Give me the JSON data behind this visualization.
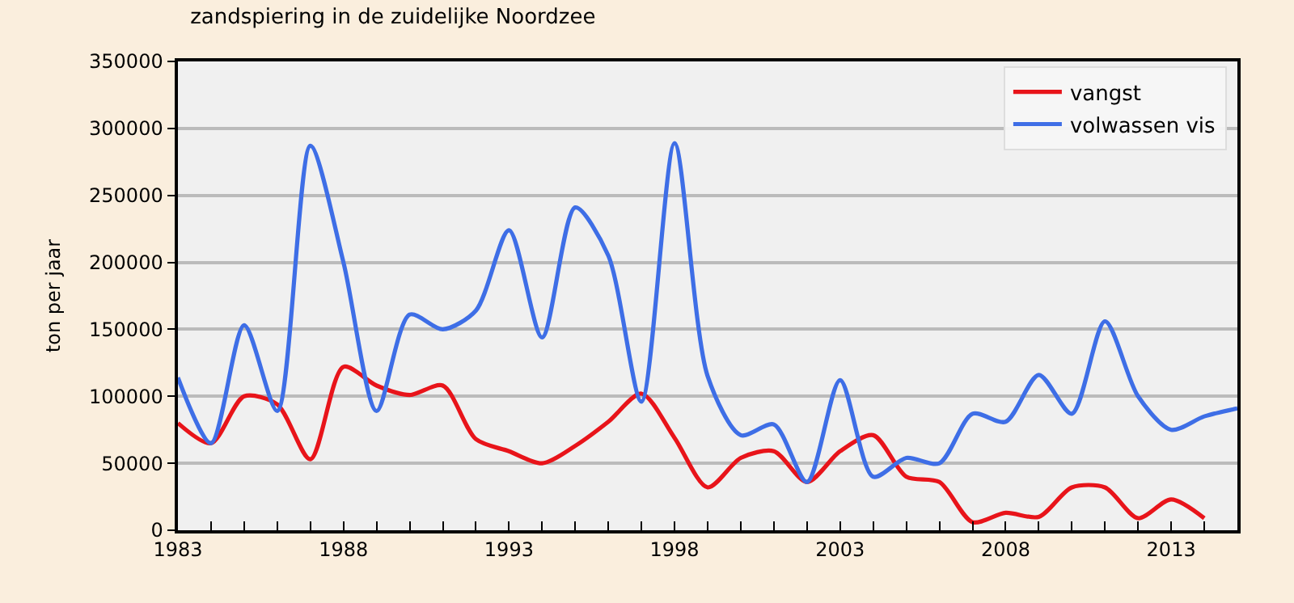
{
  "chart_data": {
    "type": "line",
    "title": "zandspiering in de zuidelijke Noordzee",
    "ylabel": "ton per jaar",
    "x": [
      1983,
      1984,
      1985,
      1986,
      1987,
      1988,
      1989,
      1990,
      1991,
      1992,
      1993,
      1994,
      1995,
      1996,
      1997,
      1998,
      1999,
      2000,
      2001,
      2002,
      2003,
      2004,
      2005,
      2006,
      2007,
      2008,
      2009,
      2010,
      2011,
      2012,
      2013,
      2014,
      2015
    ],
    "series": [
      {
        "name": "vangst",
        "color": "#e8141a",
        "x": [
          1983,
          1984,
          1985,
          1986,
          1987,
          1988,
          1989,
          1990,
          1991,
          1992,
          1993,
          1994,
          1995,
          1996,
          1997,
          1998,
          1999,
          2000,
          2001,
          2002,
          2003,
          2004,
          2005,
          2006,
          2007,
          2008,
          2009,
          2010,
          2011,
          2012,
          2013,
          2014
        ],
        "values": [
          80000,
          65000,
          100000,
          94000,
          53000,
          122000,
          108000,
          101000,
          108000,
          68000,
          59000,
          50000,
          63000,
          81000,
          102000,
          69000,
          32000,
          54000,
          59000,
          36000,
          59000,
          71000,
          40000,
          36000,
          6000,
          13000,
          10000,
          32000,
          32000,
          9000,
          23000,
          9000
        ]
      },
      {
        "name": "volwassen vis",
        "color": "#3e6ee6",
        "values": [
          114000,
          65000,
          153000,
          89000,
          287000,
          200000,
          89000,
          161000,
          150000,
          164000,
          224000,
          144000,
          241000,
          205000,
          96000,
          289000,
          115000,
          71000,
          79000,
          36000,
          112000,
          40000,
          54000,
          50000,
          87000,
          81000,
          116000,
          87000,
          156000,
          100000,
          75000,
          85000,
          91000
        ]
      }
    ],
    "xlim": [
      1983,
      2015
    ],
    "xticks": [
      1983,
      {
        "value": 1984,
        "label": null
      },
      {
        "value": 1985,
        "label": null
      },
      {
        "value": 1986,
        "label": null
      },
      {
        "value": 1987,
        "label": null
      },
      1988,
      {
        "value": 1989,
        "label": null
      },
      {
        "value": 1990,
        "label": null
      },
      {
        "value": 1991,
        "label": null
      },
      {
        "value": 1992,
        "label": null
      },
      1993,
      {
        "value": 1994,
        "label": null
      },
      {
        "value": 1995,
        "label": null
      },
      {
        "value": 1996,
        "label": null
      },
      {
        "value": 1997,
        "label": null
      },
      1998,
      {
        "value": 1999,
        "label": null
      },
      {
        "value": 2000,
        "label": null
      },
      {
        "value": 2001,
        "label": null
      },
      {
        "value": 2002,
        "label": null
      },
      2003,
      {
        "value": 2004,
        "label": null
      },
      {
        "value": 2005,
        "label": null
      },
      {
        "value": 2006,
        "label": null
      },
      {
        "value": 2007,
        "label": null
      },
      2008,
      {
        "value": 2009,
        "label": null
      },
      {
        "value": 2010,
        "label": null
      },
      {
        "value": 2011,
        "label": null
      },
      {
        "value": 2012,
        "label": null
      },
      2013,
      {
        "value": 2014,
        "label": null
      }
    ],
    "ylim": [
      0,
      350000
    ],
    "yticks": [
      0,
      50000,
      100000,
      150000,
      200000,
      250000,
      300000,
      350000
    ],
    "grid": "y",
    "legend": "top right",
    "marker": "none",
    "line_style": "solid"
  }
}
